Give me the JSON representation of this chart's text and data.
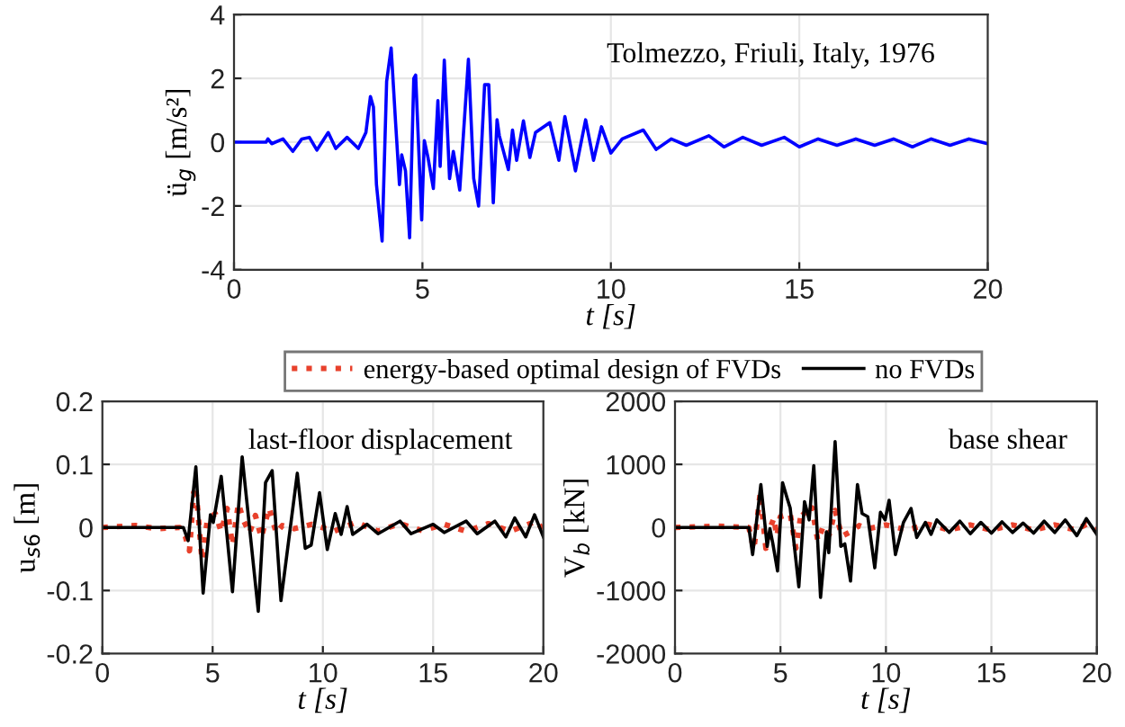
{
  "chart_data": [
    {
      "type": "line",
      "xlabel": "t [s]",
      "ylabel": "ü$_{g}$ [m/s²]",
      "annotations": [
        "Tolmezzo, Friuli, Italy, 1976"
      ],
      "xlim": [
        0,
        20
      ],
      "ylim": [
        -4,
        4
      ],
      "xticks": [
        0,
        5,
        10,
        15,
        20
      ],
      "yticks": [
        -4,
        -2,
        0,
        2,
        4
      ],
      "grid": true,
      "series": [
        {
          "color": "#0000ff",
          "line_style": "solid",
          "x": [
            0,
            0.85,
            0.9,
            1.0,
            1.3,
            1.56,
            1.8,
            2.0,
            2.2,
            2.5,
            2.7,
            3.0,
            3.3,
            3.5,
            3.62,
            3.7,
            3.78,
            3.93,
            4.05,
            4.17,
            4.29,
            4.39,
            4.45,
            4.55,
            4.66,
            4.77,
            4.82,
            4.98,
            5.05,
            5.15,
            5.29,
            5.41,
            5.47,
            5.58,
            5.72,
            5.82,
            5.99,
            6.22,
            6.36,
            6.49,
            6.65,
            6.76,
            6.88,
            6.98,
            7.04,
            7.28,
            7.39,
            7.5,
            7.68,
            7.85,
            8.0,
            8.38,
            8.62,
            8.78,
            9.06,
            9.33,
            9.54,
            9.75,
            10.0,
            10.3,
            10.86,
            11.2,
            11.6,
            12.0,
            12.6,
            13.0,
            13.5,
            14.0,
            14.6,
            15.0,
            15.5,
            16.0,
            16.5,
            17.0,
            17.5,
            18.0,
            18.5,
            19.0,
            19.5,
            20.0
          ],
          "values": [
            0,
            0,
            0.1,
            -0.05,
            0.1,
            -0.29,
            0.1,
            0.15,
            -0.25,
            0.3,
            -0.2,
            0.15,
            -0.2,
            0.3,
            1.43,
            1.1,
            -1.33,
            -3.1,
            1.9,
            2.95,
            0.57,
            -1.33,
            -0.4,
            -0.9,
            -3.0,
            2.0,
            2.1,
            -2.44,
            0.05,
            -0.5,
            -1.45,
            1.3,
            -0.76,
            2.57,
            -1.14,
            -0.29,
            -1.5,
            2.6,
            -1.14,
            -2.0,
            1.8,
            1.8,
            -1.9,
            0.7,
            0.2,
            -0.86,
            0.38,
            -0.57,
            0.67,
            -0.48,
            0.3,
            0.61,
            -0.57,
            0.8,
            -0.9,
            0.7,
            -0.57,
            0.48,
            -0.34,
            0.1,
            0.38,
            -0.23,
            0.1,
            -0.1,
            0.2,
            -0.15,
            0.15,
            -0.1,
            0.15,
            -0.15,
            0.1,
            -0.1,
            0.1,
            -0.1,
            0.1,
            -0.15,
            0.1,
            -0.1,
            0.1,
            -0.05
          ]
        }
      ]
    },
    {
      "type": "line",
      "xlabel": "t [s]",
      "ylabel": "u$_{s6}$ [m]",
      "annotations": [
        "last-floor displacement"
      ],
      "xlim": [
        0,
        20
      ],
      "ylim": [
        -0.2,
        0.2
      ],
      "xticks": [
        0,
        5,
        10,
        15,
        20
      ],
      "yticks": [
        -0.2,
        -0.1,
        0,
        0.1,
        0.2
      ],
      "grid": true,
      "legend": "top",
      "series": [
        {
          "name": "energy-based optimal design of FVDs",
          "color": "#e8412c",
          "line_style": "dotted",
          "x": [
            0,
            1.5,
            2.5,
            3.5,
            3.76,
            3.95,
            4.14,
            4.27,
            4.52,
            4.76,
            5.12,
            5.39,
            5.66,
            5.9,
            6.17,
            6.39,
            6.67,
            6.94,
            7.21,
            7.56,
            7.89,
            8.16,
            8.7,
            9.5,
            10.5,
            11.5,
            12.5,
            13.5,
            14.5,
            15.5,
            16.5,
            17.5,
            18.5,
            19.7,
            20.0
          ],
          "values": [
            0,
            0.003,
            -0.002,
            0,
            -0.014,
            -0.037,
            0.055,
            0.05,
            -0.052,
            0.012,
            0.022,
            -0.007,
            0.03,
            -0.028,
            0.038,
            0.012,
            -0.009,
            0.019,
            -0.016,
            0.031,
            -0.009,
            0.003,
            -0.002,
            0.005,
            -0.006,
            0.008,
            -0.006,
            0.006,
            -0.005,
            0.005,
            -0.006,
            0.006,
            -0.006,
            0.01,
            -0.005
          ]
        },
        {
          "name": "no FVDs",
          "color": "#000000",
          "line_style": "solid",
          "x": [
            0,
            3.5,
            3.67,
            3.89,
            4.24,
            4.57,
            4.9,
            5.03,
            5.39,
            5.9,
            6.34,
            7.07,
            7.4,
            7.7,
            8.1,
            8.84,
            9.2,
            9.47,
            9.85,
            10.2,
            10.56,
            10.83,
            11.1,
            11.35,
            12.0,
            12.5,
            13.5,
            14.0,
            15.0,
            15.5,
            16.5,
            17.0,
            17.8,
            18.3,
            18.7,
            19.2,
            19.6,
            20.0
          ],
          "values": [
            0,
            0,
            0,
            -0.021,
            0.096,
            -0.104,
            0.02,
            0.008,
            0.081,
            -0.102,
            0.112,
            -0.133,
            0.071,
            0.09,
            -0.116,
            0.086,
            -0.033,
            -0.028,
            0.055,
            -0.035,
            0.022,
            -0.011,
            0.033,
            -0.011,
            0.005,
            -0.01,
            0.01,
            -0.01,
            0.005,
            -0.008,
            0.01,
            -0.01,
            0.01,
            -0.015,
            0.015,
            -0.015,
            0.02,
            -0.015
          ]
        }
      ]
    },
    {
      "type": "line",
      "xlabel": "t [s]",
      "ylabel": "V$_{b}$ [kN]",
      "annotations": [
        "base shear"
      ],
      "xlim": [
        0,
        20
      ],
      "ylim": [
        -2000,
        2000
      ],
      "xticks": [
        0,
        5,
        10,
        15,
        20
      ],
      "yticks": [
        -2000,
        -1000,
        0,
        1000,
        2000
      ],
      "grid": true,
      "series": [
        {
          "color": "#e8412c",
          "line_style": "dotted",
          "x": [
            0,
            2.0,
            3.5,
            3.74,
            4.04,
            4.31,
            4.5,
            4.69,
            4.83,
            4.99,
            5.46,
            5.73,
            6.0,
            6.28,
            6.5,
            6.77,
            7.04,
            7.32,
            7.59,
            7.91,
            8.32,
            8.73,
            9.14,
            10.0,
            11.0,
            12.0,
            13.0,
            14.0,
            15.0,
            16.0,
            17.0,
            18.0,
            19.0,
            19.5,
            20.0
          ],
          "values": [
            0,
            20,
            0,
            -350,
            550,
            -330,
            -20,
            150,
            -140,
            170,
            220,
            -330,
            270,
            170,
            310,
            -210,
            30,
            -110,
            270,
            -140,
            -70,
            30,
            -20,
            40,
            -40,
            50,
            -40,
            40,
            -40,
            40,
            -40,
            40,
            -40,
            50,
            -50
          ]
        },
        {
          "color": "#000000",
          "line_style": "solid",
          "x": [
            0,
            3.5,
            3.68,
            4.07,
            4.37,
            4.5,
            4.64,
            4.86,
            5.1,
            5.32,
            5.46,
            5.87,
            6.14,
            6.36,
            6.58,
            6.9,
            7.18,
            7.29,
            7.59,
            7.86,
            8.05,
            8.32,
            8.65,
            8.87,
            9.14,
            9.47,
            9.74,
            9.96,
            10.15,
            10.45,
            10.83,
            11.19,
            11.46,
            11.87,
            12.14,
            12.41,
            13.0,
            13.5,
            14.0,
            14.5,
            15.0,
            15.5,
            16.0,
            16.5,
            17.0,
            17.5,
            18.0,
            18.5,
            19.05,
            19.5,
            20.0
          ],
          "values": [
            0,
            0,
            -430,
            680,
            -300,
            -20,
            -260,
            -690,
            710,
            460,
            310,
            -940,
            410,
            120,
            980,
            -1110,
            -70,
            -400,
            1360,
            -300,
            -260,
            -850,
            680,
            220,
            170,
            -640,
            240,
            120,
            430,
            -430,
            80,
            300,
            -160,
            80,
            -110,
            120,
            -80,
            100,
            -100,
            80,
            -90,
            90,
            -80,
            70,
            -90,
            100,
            -80,
            120,
            -130,
            140,
            -110
          ]
        }
      ]
    }
  ]
}
